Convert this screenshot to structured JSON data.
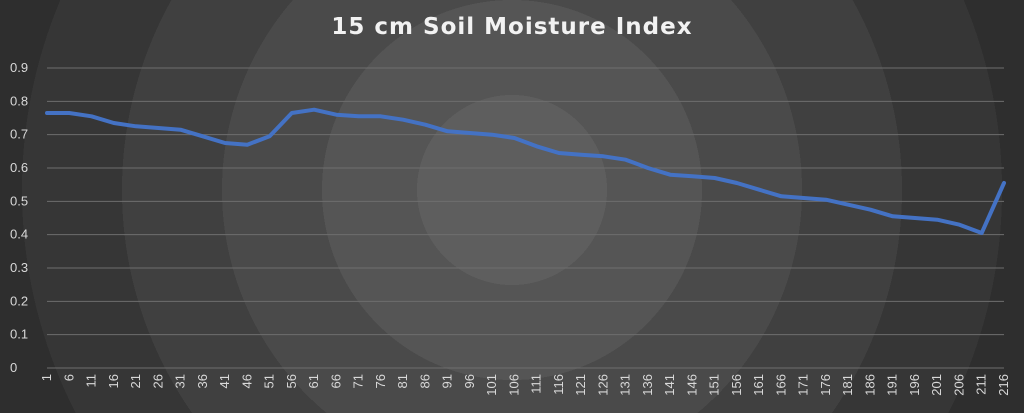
{
  "chart_data": {
    "type": "line",
    "title": "15 cm Soil Moisture Index",
    "xlabel": "",
    "ylabel": "",
    "ylim": [
      0,
      0.9
    ],
    "grid": true,
    "legend": "none",
    "line_color": "#4472c4",
    "y_ticks": [
      "0",
      "0.1",
      "0.2",
      "0.3",
      "0.4",
      "0.5",
      "0.6",
      "0.7",
      "0.8",
      "0.9"
    ],
    "x_ticks": [
      "1",
      "6",
      "11",
      "16",
      "21",
      "26",
      "31",
      "36",
      "41",
      "46",
      "51",
      "56",
      "61",
      "66",
      "71",
      "76",
      "81",
      "86",
      "91",
      "96",
      "101",
      "106",
      "111",
      "116",
      "121",
      "126",
      "131",
      "136",
      "141",
      "146",
      "151",
      "156",
      "161",
      "166",
      "171",
      "176",
      "181",
      "186",
      "191",
      "196",
      "201",
      "206",
      "211",
      "216"
    ],
    "series": [
      {
        "x": [
          1,
          6,
          11,
          16,
          21,
          26,
          31,
          36,
          41,
          46,
          51,
          56,
          61,
          66,
          71,
          76,
          81,
          86,
          91,
          96,
          101,
          106,
          111,
          116,
          121,
          126,
          131,
          136,
          141,
          146,
          151,
          156,
          161,
          166,
          171,
          176,
          181,
          186,
          191,
          196,
          201,
          206,
          211,
          216
        ],
        "values": [
          0.765,
          0.765,
          0.755,
          0.735,
          0.725,
          0.72,
          0.715,
          0.695,
          0.675,
          0.67,
          0.695,
          0.765,
          0.775,
          0.76,
          0.755,
          0.755,
          0.745,
          0.73,
          0.71,
          0.705,
          0.7,
          0.69,
          0.665,
          0.645,
          0.64,
          0.635,
          0.625,
          0.6,
          0.58,
          0.575,
          0.57,
          0.555,
          0.535,
          0.515,
          0.51,
          0.505,
          0.49,
          0.475,
          0.455,
          0.45,
          0.445,
          0.43,
          0.405,
          0.555
        ]
      }
    ]
  }
}
